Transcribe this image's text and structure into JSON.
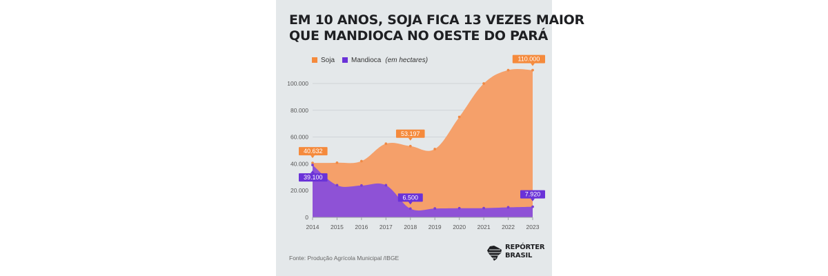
{
  "title": {
    "line1": "EM 10 ANOS, SOJA FICA 13 VEZES MAIOR",
    "line2": "QUE MANDIOCA NO OESTE DO PARÁ"
  },
  "legend": {
    "soja": "Soja",
    "mandioca": "Mandioca",
    "unit": "(em hectares)"
  },
  "source": "Fonte: Produção Agrícola Municipal /IBGE",
  "logo": {
    "line1": "REPÓRTER",
    "line2": "BRASIL"
  },
  "colors": {
    "soja": "#f5a06a",
    "soja_point": "#f08a45",
    "soja_label": "#f58a3c",
    "mandioca": "#8e52d6",
    "mandioca_point": "#7b3fd0",
    "mandioca_label": "#6a32d8"
  },
  "chart_data": {
    "type": "area",
    "title": "EM 10 ANOS, SOJA FICA 13 VEZES MAIOR QUE MANDIOCA NO OESTE DO PARÁ",
    "categories": [
      "2014",
      "2015",
      "2016",
      "2017",
      "2018",
      "2019",
      "2020",
      "2021",
      "2022",
      "2023"
    ],
    "series": [
      {
        "name": "Soja",
        "values": [
          40632,
          40800,
          42000,
          55000,
          53197,
          51000,
          75000,
          100000,
          110000,
          110000
        ]
      },
      {
        "name": "Mandioca",
        "values": [
          39100,
          24000,
          23800,
          24000,
          6500,
          6600,
          6800,
          6900,
          7500,
          7920
        ]
      }
    ],
    "yticks": [
      "0",
      "20.000",
      "40.000",
      "60.000",
      "80.000",
      "100.000"
    ],
    "ylim": [
      0,
      120000
    ],
    "ylabel": "(em hectares)",
    "annotations": [
      {
        "series": "Soja",
        "index": 0,
        "text": "40.632"
      },
      {
        "series": "Soja",
        "index": 4,
        "text": "53.197"
      },
      {
        "series": "Soja",
        "index": 9,
        "text": "110.000"
      },
      {
        "series": "Mandioca",
        "index": 0,
        "text": "39.100"
      },
      {
        "series": "Mandioca",
        "index": 4,
        "text": "6.500"
      },
      {
        "series": "Mandioca",
        "index": 9,
        "text": "7.920"
      }
    ]
  }
}
